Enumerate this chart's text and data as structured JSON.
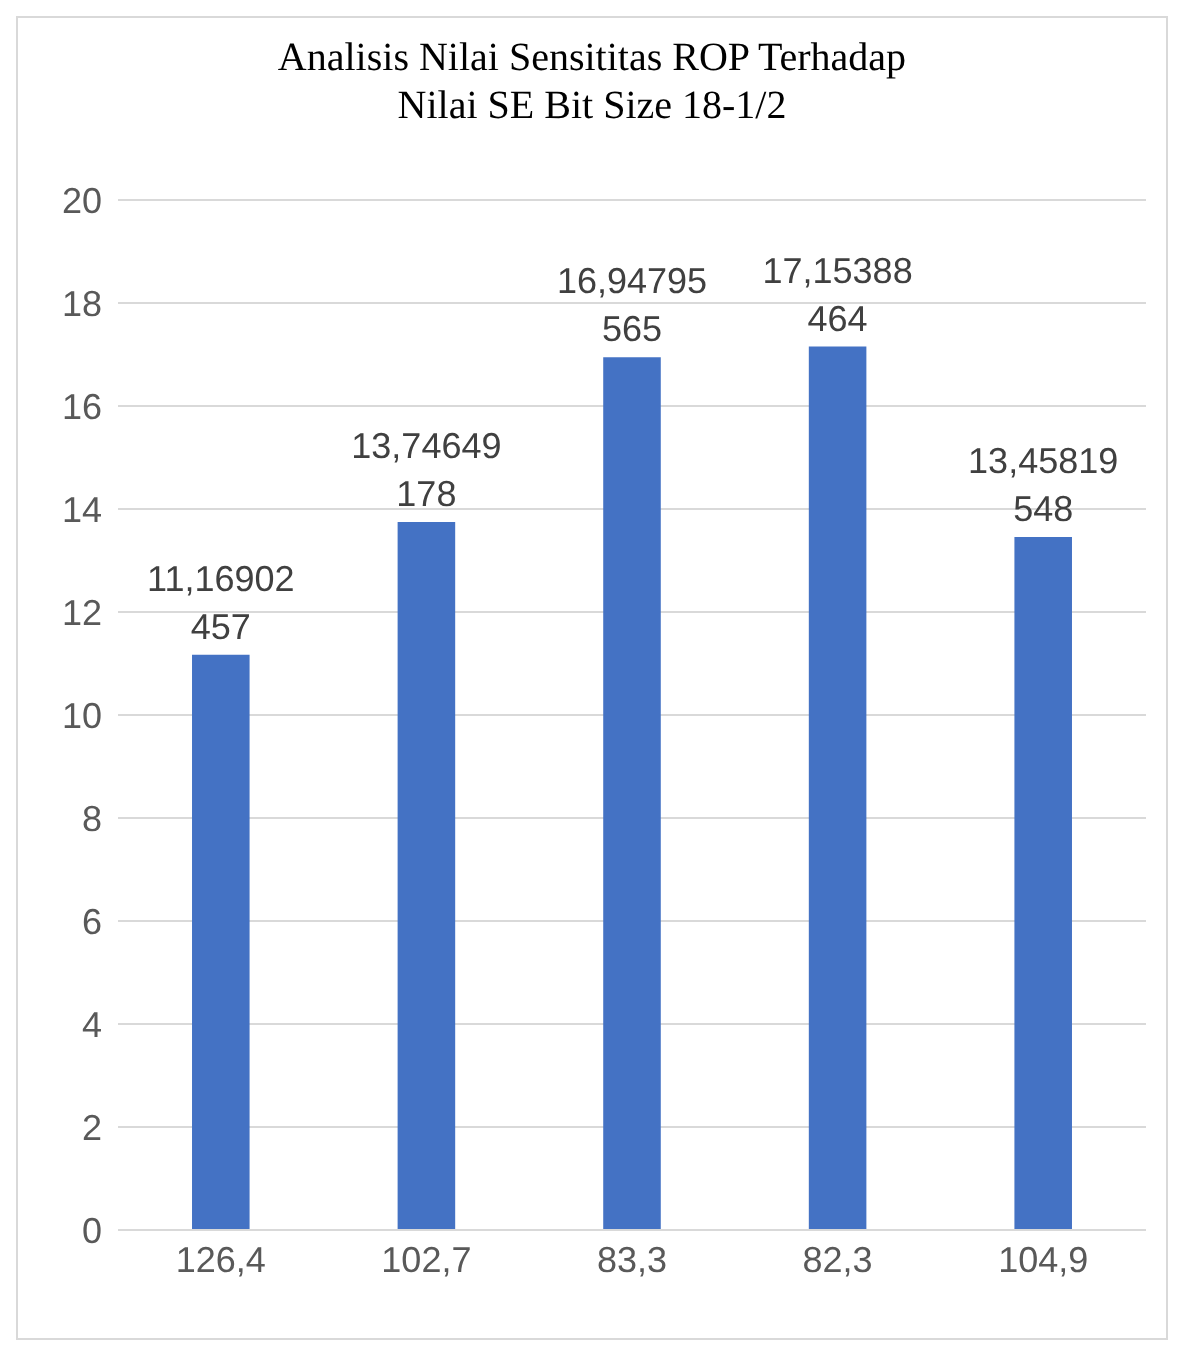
{
  "chart_data": {
    "type": "bar",
    "title": "Analisis Nilai Sensititas ROP Terhadap Nilai SE Bit Size 18-1/2",
    "categories": [
      "126,4",
      "102,7",
      "83,3",
      "82,3",
      "104,9"
    ],
    "values": [
      11.16902457,
      13.74649178,
      16.94795565,
      17.15388464,
      13.45819548
    ],
    "value_labels": [
      "11,16902457",
      "13,74649178",
      "16,94795565",
      "17,15388464",
      "13,45819548"
    ],
    "color": "#4472c4",
    "ylim": [
      0,
      20
    ],
    "yticks": [
      0,
      2,
      4,
      6,
      8,
      10,
      12,
      14,
      16,
      18,
      20
    ],
    "grid": "y",
    "legend": false
  }
}
